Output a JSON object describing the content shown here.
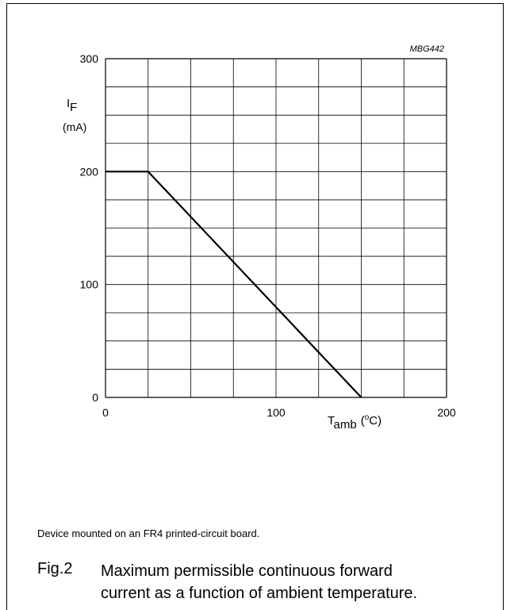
{
  "chart_data": {
    "type": "line",
    "code": "MBG442",
    "ylabel_symbol": "I",
    "ylabel_sub": "F",
    "ylabel_unit": "(mA)",
    "xlabel_symbol": "T",
    "xlabel_sub": "amb",
    "xlabel_unit_open": "(",
    "xlabel_unit_sup": "o",
    "xlabel_unit_rest": "C)",
    "xlim": [
      0,
      200
    ],
    "ylim": [
      0,
      300
    ],
    "x_minor_step": 25,
    "y_minor_step": 25,
    "grid": true,
    "x_ticks": [
      "0",
      "100",
      "200"
    ],
    "y_ticks": [
      "0",
      "100",
      "200",
      "300"
    ],
    "series": [
      {
        "x": [
          0,
          25,
          150
        ],
        "y": [
          200,
          200,
          0
        ]
      }
    ]
  },
  "note": "Device mounted on an FR4 printed-circuit board.",
  "caption": {
    "label": "Fig.2",
    "text_line1": "Maximum permissible continuous forward",
    "text_line2": "current as a function of ambient temperature."
  }
}
